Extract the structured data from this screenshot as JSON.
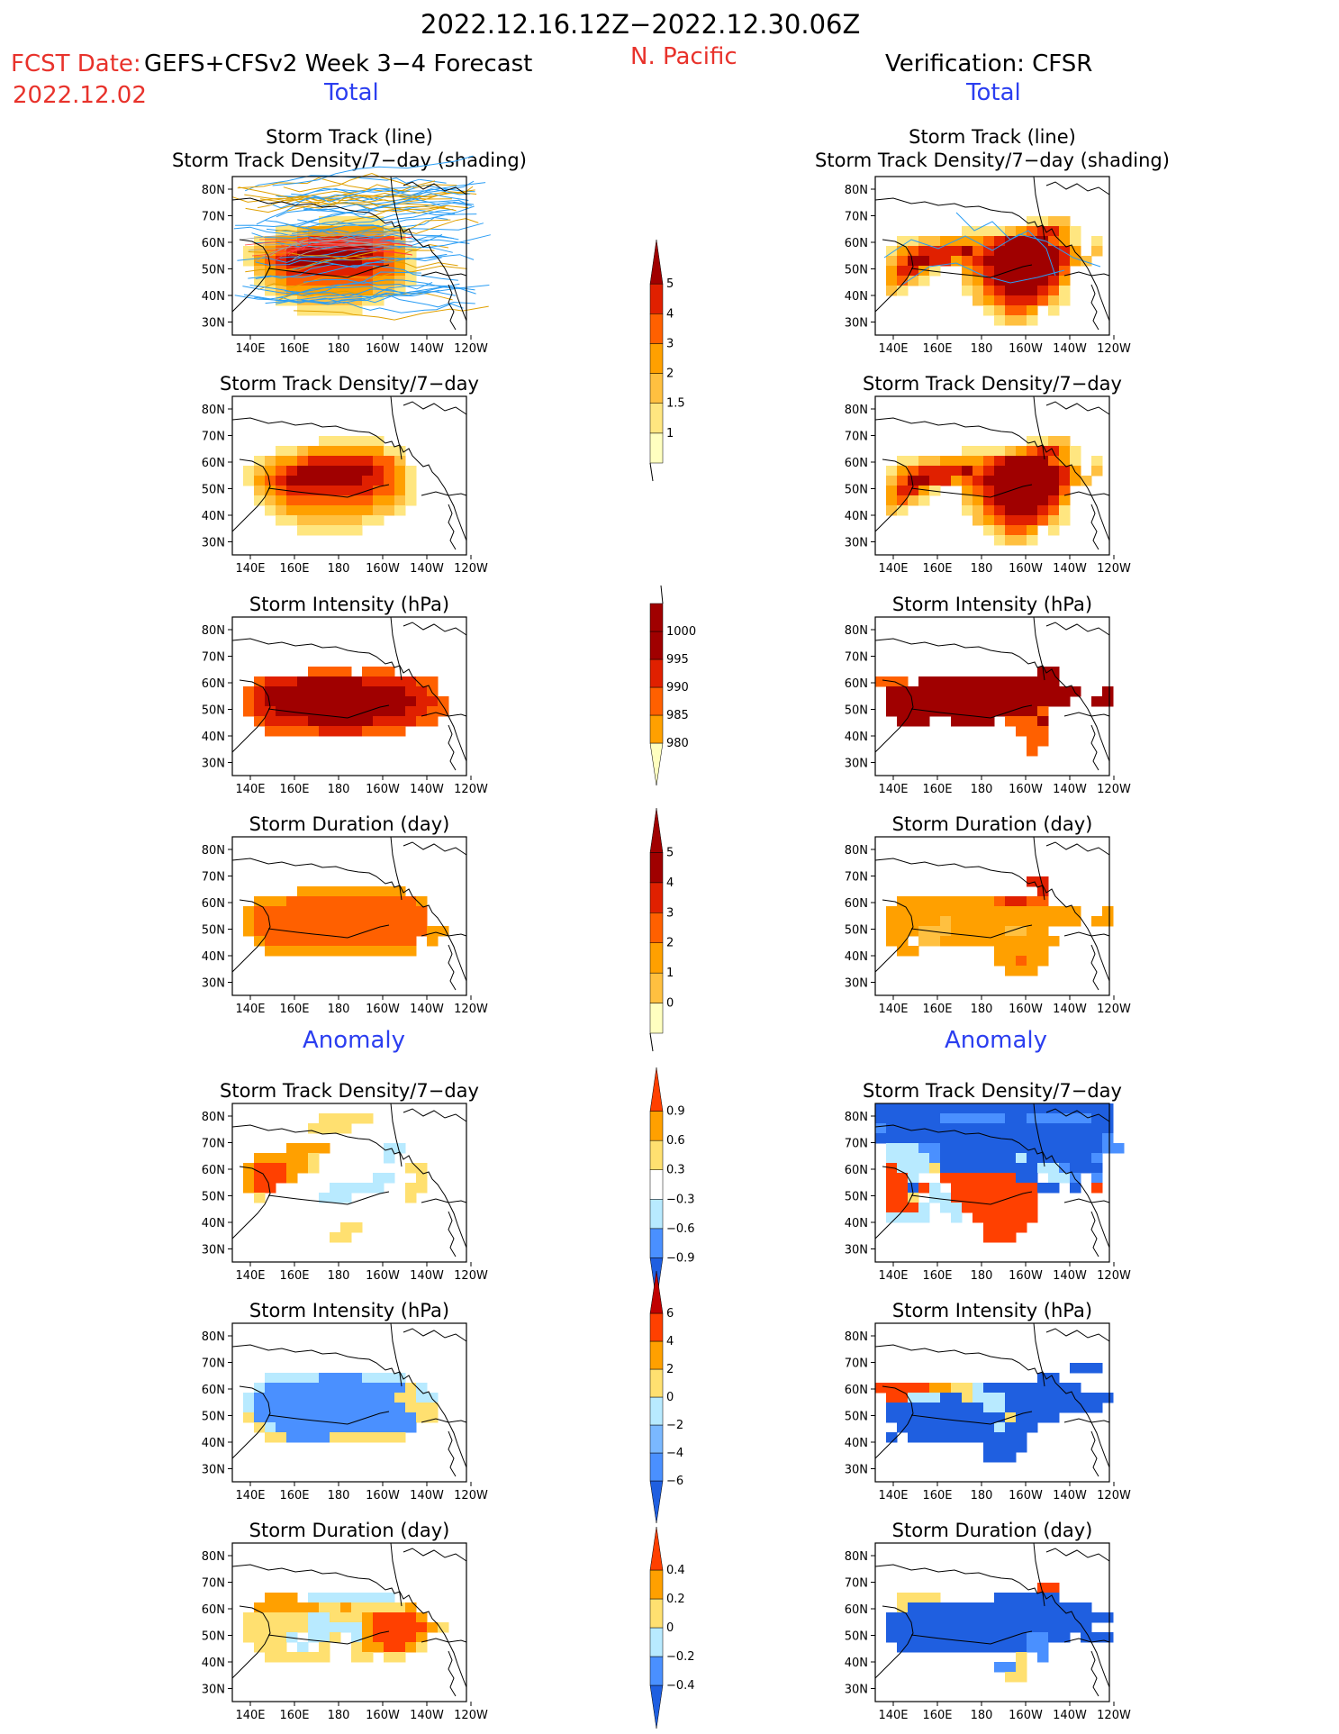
{
  "header": {
    "title": "2022.12.16.12Z−2022.12.30.06Z",
    "region": "N. Pacific",
    "fcst_date_label": "FCST Date:",
    "fcst_model": "GEFS+CFSv2 Week 3−4 Forecast",
    "fcst_date": "2022.12.02",
    "verification": "Verification: CFSR"
  },
  "sections": {
    "total": "Total",
    "anomaly": "Anomaly"
  },
  "panel_labels": {
    "track_line": "Storm Track (line)",
    "track_shading": "Storm Track Density/7−day (shading)",
    "density": "Storm Track Density/7−day",
    "intensity": "Storm Intensity (hPa)",
    "duration": "Storm Duration (day)"
  },
  "axes": {
    "lat_ticks": [
      "80N",
      "70N",
      "60N",
      "50N",
      "40N",
      "30N"
    ],
    "lon_ticks": [
      "140E",
      "160E",
      "180",
      "160W",
      "140W",
      "120W"
    ]
  },
  "colorbars": [
    {
      "name": "density-total",
      "labels": [
        "5",
        "4",
        "3",
        "2",
        "1.5",
        "1"
      ],
      "colors": [
        "#ffffc0",
        "#ffe680",
        "#ffc040",
        "#ffa000",
        "#ff6000",
        "#e02000",
        "#a00000"
      ]
    },
    {
      "name": "intensity-total",
      "labels": [
        "1000",
        "995",
        "990",
        "985",
        "980"
      ],
      "colors": [
        "#ffffc0",
        "#ffa000",
        "#ff6000",
        "#e02000",
        "#a00000",
        "#a00000"
      ]
    },
    {
      "name": "duration-total",
      "labels": [
        "5",
        "4",
        "3",
        "2",
        "1",
        "0"
      ],
      "colors": [
        "#ffffc0",
        "#ffc040",
        "#ffa000",
        "#ff6000",
        "#e02000",
        "#a00000",
        "#a00000"
      ]
    },
    {
      "name": "density-anomaly",
      "labels": [
        "0.9",
        "0.6",
        "0.3",
        "−0.3",
        "−0.6",
        "−0.9"
      ],
      "colors": [
        "#1f5fe0",
        "#4a90ff",
        "#b8eaff",
        "#ffffff",
        "#ffe070",
        "#ffa000",
        "#ff4000"
      ]
    },
    {
      "name": "intensity-anomaly",
      "labels": [
        "6",
        "4",
        "2",
        "0",
        "−2",
        "−4",
        "−6"
      ],
      "colors": [
        "#1f5fe0",
        "#4a90ff",
        "#7ab8ff",
        "#b8eaff",
        "#ffe070",
        "#ffa000",
        "#ff4000",
        "#c00000"
      ]
    },
    {
      "name": "duration-anomaly",
      "labels": [
        "0.4",
        "0.2",
        "0",
        "−0.2",
        "−0.4"
      ],
      "colors": [
        "#1f5fe0",
        "#4a90ff",
        "#b8eaff",
        "#ffe070",
        "#ffa000",
        "#ff4000"
      ]
    }
  ]
}
